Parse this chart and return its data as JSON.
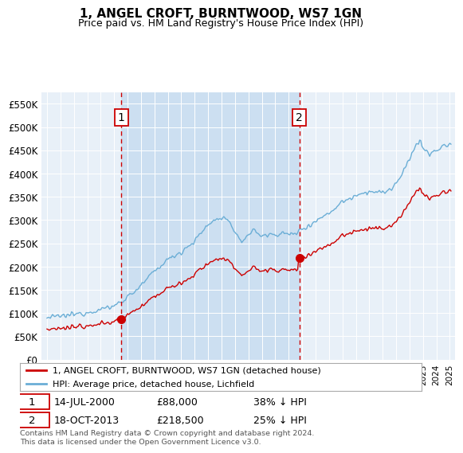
{
  "title": "1, ANGEL CROFT, BURNTWOOD, WS7 1GN",
  "subtitle": "Price paid vs. HM Land Registry's House Price Index (HPI)",
  "hpi_label": "HPI: Average price, detached house, Lichfield",
  "price_label": "1, ANGEL CROFT, BURNTWOOD, WS7 1GN (detached house)",
  "hpi_color": "#6baed6",
  "price_color": "#cc0000",
  "vline_color": "#cc0000",
  "shade_color": "#d6e8f5",
  "footnote": "Contains HM Land Registry data © Crown copyright and database right 2024.\nThis data is licensed under the Open Government Licence v3.0.",
  "sale1_date": "14-JUL-2000",
  "sale1_price": 88000,
  "sale1_price_str": "£88,000",
  "sale1_pct": "38% ↓ HPI",
  "sale1_x": 2000.54,
  "sale2_date": "18-OCT-2013",
  "sale2_price": 218500,
  "sale2_price_str": "£218,500",
  "sale2_pct": "25% ↓ HPI",
  "sale2_x": 2013.79,
  "ylim_top": 575000,
  "ylim_bottom": 0,
  "yticks": [
    0,
    50000,
    100000,
    150000,
    200000,
    250000,
    300000,
    350000,
    400000,
    450000,
    500000,
    550000
  ],
  "ytick_labels": [
    "£0",
    "£50K",
    "£100K",
    "£150K",
    "£200K",
    "£250K",
    "£300K",
    "£350K",
    "£400K",
    "£450K",
    "£500K",
    "£550K"
  ],
  "xlim_left": 1994.6,
  "xlim_right": 2025.4
}
